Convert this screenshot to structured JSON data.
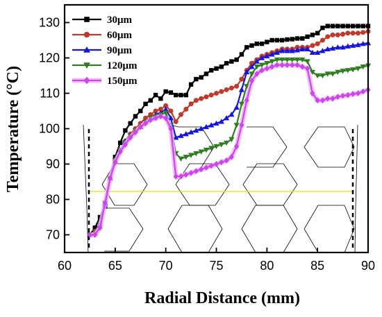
{
  "chart_data": {
    "type": "line",
    "xlabel": "Radial Distance (mm)",
    "ylabel": "Temperature (°C)",
    "xlim": [
      60,
      90
    ],
    "ylim": [
      65,
      135
    ],
    "xticks": [
      60,
      65,
      70,
      75,
      80,
      85,
      90
    ],
    "yticks": [
      70,
      80,
      90,
      100,
      110,
      120,
      130
    ],
    "grid": false,
    "legend_position": "top-left",
    "series": [
      {
        "name": "30μm",
        "color": "#000000",
        "marker": "square",
        "x": [
          62.5,
          63.0,
          63.5,
          64.0,
          64.5,
          65.0,
          65.5,
          66.0,
          66.5,
          67.0,
          67.5,
          68.0,
          68.5,
          69.0,
          69.5,
          70.0,
          70.5,
          71.0,
          71.5,
          72.0,
          72.5,
          73.0,
          73.5,
          74.0,
          74.5,
          75.0,
          75.5,
          76.0,
          76.5,
          77.0,
          77.5,
          78.0,
          78.5,
          79.0,
          79.5,
          80.0,
          80.5,
          81.0,
          81.5,
          82.0,
          82.5,
          83.0,
          83.5,
          84.0,
          84.5,
          85.0,
          85.5,
          86.0,
          86.5,
          87.0,
          87.5,
          88.0,
          88.5,
          89.0,
          89.5,
          90.0
        ],
        "y": [
          70,
          72,
          75,
          78,
          86,
          92,
          96,
          99.5,
          101.5,
          103.5,
          105,
          107,
          108,
          109.5,
          108.5,
          110.5,
          110.2,
          109.5,
          109.5,
          109.5,
          112.5,
          114,
          114.5,
          115.5,
          116.5,
          117,
          117.5,
          118.5,
          119,
          119.5,
          121,
          123,
          123.5,
          124,
          124,
          124.5,
          125,
          125,
          125,
          125.2,
          125.3,
          125.5,
          125.5,
          126,
          126.5,
          127,
          128.5,
          129,
          129,
          129,
          129,
          129,
          129,
          129,
          129,
          129
        ]
      },
      {
        "name": "60μm",
        "color": "#C0392B",
        "marker": "circle",
        "x": [
          62.5,
          63.0,
          63.5,
          64.0,
          64.5,
          65.0,
          65.5,
          66.0,
          66.5,
          67.0,
          67.5,
          68.0,
          68.5,
          69.0,
          69.5,
          70.0,
          70.5,
          71.0,
          71.5,
          72.0,
          72.5,
          73.0,
          73.5,
          74.0,
          74.5,
          75.0,
          75.5,
          76.0,
          76.5,
          77.0,
          77.5,
          78.0,
          78.5,
          79.0,
          79.5,
          80.0,
          80.5,
          81.0,
          81.5,
          82.0,
          82.5,
          83.0,
          83.5,
          84.0,
          84.5,
          85.0,
          85.5,
          86.0,
          86.5,
          87.0,
          87.5,
          88.0,
          88.5,
          89.0,
          89.5,
          90.0
        ],
        "y": [
          70,
          71,
          73,
          79,
          86,
          91,
          94,
          96.5,
          98.5,
          100,
          101.5,
          103,
          104,
          105,
          105.5,
          106.5,
          105,
          102,
          104,
          105.5,
          107,
          108,
          108.5,
          109,
          109.5,
          110,
          110.5,
          111,
          111.5,
          112,
          114,
          116.5,
          118.5,
          119.5,
          120.5,
          121,
          121.5,
          122,
          122.5,
          122.5,
          122.5,
          123,
          123,
          123,
          123.5,
          124,
          125,
          126,
          126.5,
          126.5,
          126.7,
          127,
          127,
          127,
          127.2,
          127.5
        ]
      },
      {
        "name": "90μm",
        "color": "#1515E0",
        "marker": "triangle-up",
        "x": [
          62.5,
          63.0,
          63.5,
          64.0,
          64.5,
          65.0,
          65.5,
          66.0,
          66.5,
          67.0,
          67.5,
          68.0,
          68.5,
          69.0,
          69.5,
          70.0,
          70.5,
          71.0,
          71.5,
          72.0,
          72.5,
          73.0,
          73.5,
          74.0,
          74.5,
          75.0,
          75.5,
          76.0,
          76.5,
          77.0,
          77.5,
          78.0,
          78.5,
          79.0,
          79.5,
          80.0,
          80.5,
          81.0,
          81.5,
          82.0,
          82.5,
          83.0,
          83.5,
          84.0,
          84.5,
          85.0,
          85.5,
          86.0,
          86.5,
          87.0,
          87.5,
          88.0,
          88.5,
          89.0,
          89.5,
          90.0
        ],
        "y": [
          70,
          70.5,
          73,
          79,
          86,
          91,
          94,
          96.5,
          98,
          99.5,
          100.5,
          102,
          103,
          104,
          104.5,
          105.5,
          103,
          97.5,
          98,
          98.5,
          99,
          99.5,
          100,
          100.5,
          101,
          101.5,
          102,
          103,
          104,
          106,
          111,
          116,
          117.5,
          119,
          120,
          120.5,
          121,
          121.5,
          122,
          122,
          122,
          122.2,
          122.5,
          122.5,
          121.5,
          121.5,
          122,
          122.5,
          122.7,
          123,
          123,
          123.3,
          123.5,
          123.7,
          124,
          124.2
        ]
      },
      {
        "name": "120μm",
        "color": "#2E7D1F",
        "marker": "triangle-down",
        "x": [
          62.5,
          63.0,
          63.5,
          64.0,
          64.5,
          65.0,
          65.5,
          66.0,
          66.5,
          67.0,
          67.5,
          68.0,
          68.5,
          69.0,
          69.5,
          70.0,
          70.5,
          71.0,
          71.5,
          72.0,
          72.5,
          73.0,
          73.5,
          74.0,
          74.5,
          75.0,
          75.5,
          76.0,
          76.5,
          77.0,
          77.5,
          78.0,
          78.5,
          79.0,
          79.5,
          80.0,
          80.5,
          81.0,
          81.5,
          82.0,
          82.5,
          83.0,
          83.5,
          84.0,
          84.5,
          85.0,
          85.5,
          86.0,
          86.5,
          87.0,
          87.5,
          88.0,
          88.5,
          89.0,
          89.5,
          90.0
        ],
        "y": [
          70,
          70.5,
          73,
          79,
          86,
          91,
          94,
          96,
          98,
          99.5,
          100.5,
          102,
          103,
          103.5,
          104,
          104.5,
          101,
          93,
          91.5,
          92,
          92.5,
          93,
          93.5,
          94,
          94.5,
          95,
          95.5,
          96,
          97,
          101,
          107,
          112,
          115.5,
          117.5,
          118,
          118.5,
          119,
          119.5,
          119.5,
          119.5,
          119.5,
          119.5,
          119.5,
          119,
          116,
          115,
          115,
          115.5,
          115.5,
          116,
          116.3,
          116.5,
          116.7,
          117,
          117.5,
          117.8
        ]
      },
      {
        "name": "150μm",
        "color": "#CC44EE",
        "marker": "diamond",
        "x": [
          62.5,
          63.0,
          63.5,
          64.0,
          64.5,
          65.0,
          65.5,
          66.0,
          66.5,
          67.0,
          67.5,
          68.0,
          68.5,
          69.0,
          69.5,
          70.0,
          70.5,
          71.0,
          71.5,
          72.0,
          72.5,
          73.0,
          73.5,
          74.0,
          74.5,
          75.0,
          75.5,
          76.0,
          76.5,
          77.0,
          77.5,
          78.0,
          78.5,
          79.0,
          79.5,
          80.0,
          80.5,
          81.0,
          81.5,
          82.0,
          82.5,
          83.0,
          83.5,
          84.0,
          84.5,
          85.0,
          85.5,
          86.0,
          86.5,
          87.0,
          87.5,
          88.0,
          88.5,
          89.0,
          89.5,
          90.0
        ],
        "y": [
          70,
          70,
          72,
          79,
          86,
          90.5,
          93.5,
          95.5,
          97.5,
          99,
          100.5,
          101.5,
          102.5,
          103,
          103.5,
          103,
          100,
          86.5,
          86.5,
          87,
          87.5,
          88,
          88.5,
          89,
          89.5,
          90,
          90.5,
          91,
          92,
          95,
          101,
          108,
          113.5,
          115.5,
          116.5,
          117,
          117.5,
          118,
          118,
          118,
          118,
          118,
          117.5,
          117,
          110,
          108,
          108,
          108.5,
          108.5,
          109,
          109.3,
          109.5,
          109.8,
          110,
          110.5,
          111
        ]
      }
    ]
  }
}
